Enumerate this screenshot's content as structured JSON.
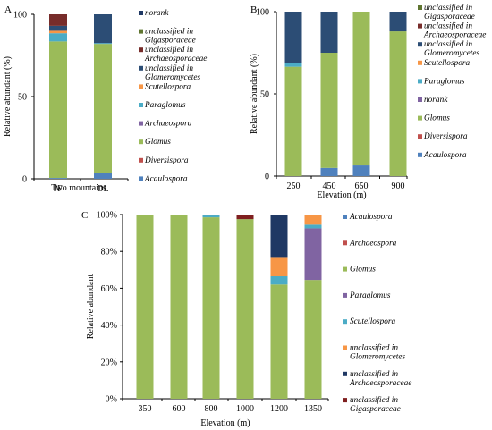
{
  "panel_labels": {
    "a": "A",
    "b": "B",
    "c": "C"
  },
  "chart_data": [
    {
      "id": "a",
      "type": "bar",
      "stacked": true,
      "xlabel": "Two mountains",
      "ylabel": "Relative abundant (%)",
      "ylim": [
        0,
        100
      ],
      "yticks": [
        "0",
        "50",
        "100"
      ],
      "categories": [
        "JF",
        "DL"
      ],
      "series": [
        {
          "name": "Acaulospora",
          "color": "#4f81bd",
          "values": [
            0.5,
            3.5
          ]
        },
        {
          "name": "Diversispora",
          "color": "#c0504d",
          "values": [
            0,
            0
          ]
        },
        {
          "name": "Glomus",
          "color": "#9bbb59",
          "values": [
            83,
            78.5
          ]
        },
        {
          "name": "Archaeospora",
          "color": "#8064a2",
          "values": [
            0,
            0
          ]
        },
        {
          "name": "Paraglomus",
          "color": "#4bacc6",
          "values": [
            5,
            0.5
          ]
        },
        {
          "name": "Scutellospora",
          "color": "#f79646",
          "values": [
            1.5,
            0
          ]
        },
        {
          "name": "unclassified in Glomeromycetes",
          "color": "#2c4d75",
          "values": [
            3,
            17.5
          ]
        },
        {
          "name": "unclassified in Archaeosporaceae",
          "color": "#772c2a",
          "values": [
            7,
            0
          ]
        },
        {
          "name": "unclassified in Gigasporaceae",
          "color": "#5f7530",
          "values": [
            0,
            0
          ]
        },
        {
          "name": "norank",
          "color": "#1f3864",
          "values": [
            0,
            0
          ]
        }
      ],
      "legend": "right"
    },
    {
      "id": "b",
      "type": "bar",
      "stacked": true,
      "xlabel": "Elevation (m)",
      "ylabel": "Relative abundant (%)",
      "ylim": [
        0,
        100
      ],
      "yticks": [
        "0",
        "50",
        "100"
      ],
      "categories": [
        "250",
        "450",
        "650",
        "900"
      ],
      "series": [
        {
          "name": "Acaulospora",
          "color": "#4f81bd",
          "values": [
            0,
            5,
            6.5,
            0
          ]
        },
        {
          "name": "Diversispora",
          "color": "#c0504d",
          "values": [
            0,
            0,
            0,
            0
          ]
        },
        {
          "name": "Glomus",
          "color": "#9bbb59",
          "values": [
            66.5,
            70,
            93.5,
            88
          ]
        },
        {
          "name": "norank",
          "color": "#8064a2",
          "values": [
            0,
            0,
            0,
            0
          ]
        },
        {
          "name": "Paraglomus",
          "color": "#4bacc6",
          "values": [
            2.5,
            0,
            0,
            0
          ]
        },
        {
          "name": "Scutellospora",
          "color": "#f79646",
          "values": [
            0,
            0,
            0,
            0
          ]
        },
        {
          "name": "unclassified in Glomeromycetes",
          "color": "#2c4d75",
          "values": [
            31,
            25,
            0,
            12
          ]
        },
        {
          "name": "unclassified in Archaeosporaceae",
          "color": "#772c2a",
          "values": [
            0,
            0,
            0,
            0
          ]
        },
        {
          "name": "unclassified in Gigasporaceae",
          "color": "#5f7530",
          "values": [
            0,
            0,
            0,
            0
          ]
        }
      ],
      "legend": "right"
    },
    {
      "id": "c",
      "type": "bar",
      "stacked": true,
      "xlabel": "Elevation (m)",
      "ylabel": "Relative abundant",
      "ylim": [
        0,
        100
      ],
      "yticks": [
        "0%",
        "20%",
        "40%",
        "60%",
        "80%",
        "100%"
      ],
      "categories": [
        "350",
        "600",
        "800",
        "1000",
        "1200",
        "1350"
      ],
      "series": [
        {
          "name": "Acaulospora",
          "color": "#4f81bd",
          "values": [
            0,
            0,
            0,
            0,
            0,
            0
          ]
        },
        {
          "name": "Archaeospora",
          "color": "#c0504d",
          "values": [
            0,
            0,
            0,
            0,
            0,
            0
          ]
        },
        {
          "name": "Glomus",
          "color": "#9bbb59",
          "values": [
            100,
            100,
            98.5,
            97.5,
            62,
            64.5
          ]
        },
        {
          "name": "Paraglomus",
          "color": "#8064a2",
          "values": [
            0,
            0,
            0,
            0,
            0,
            28
          ]
        },
        {
          "name": "Scutellospora",
          "color": "#4bacc6",
          "values": [
            0,
            0,
            1,
            0,
            4.5,
            2
          ]
        },
        {
          "name": "unclassified in Glomeromycetes",
          "color": "#f79646",
          "values": [
            0,
            0,
            0,
            0,
            10,
            5.5
          ]
        },
        {
          "name": "unclassified in Archaeosporaceae",
          "color": "#1f3864",
          "values": [
            0,
            0,
            0.5,
            0,
            23.5,
            0
          ]
        },
        {
          "name": "unclassified in Gigasporaceae",
          "color": "#7f1f1f",
          "values": [
            0,
            0,
            0,
            2.5,
            0,
            0
          ]
        }
      ],
      "legend": "right"
    }
  ]
}
